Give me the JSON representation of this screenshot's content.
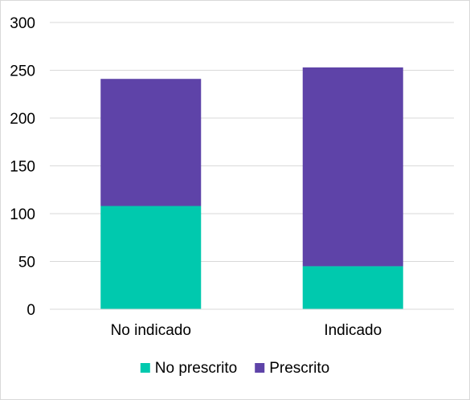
{
  "chart_data": {
    "type": "bar",
    "stacked": true,
    "categories": [
      "No indicado",
      "Indicado"
    ],
    "series": [
      {
        "name": "No prescrito",
        "values": [
          108,
          45
        ],
        "color": "#00C9AE"
      },
      {
        "name": "Prescrito",
        "values": [
          133,
          208
        ],
        "color": "#5E43A8"
      }
    ],
    "ylim": [
      0,
      300
    ],
    "yticks": [
      0,
      50,
      100,
      150,
      200,
      250,
      300
    ],
    "grid": true,
    "legend_position": "bottom"
  }
}
